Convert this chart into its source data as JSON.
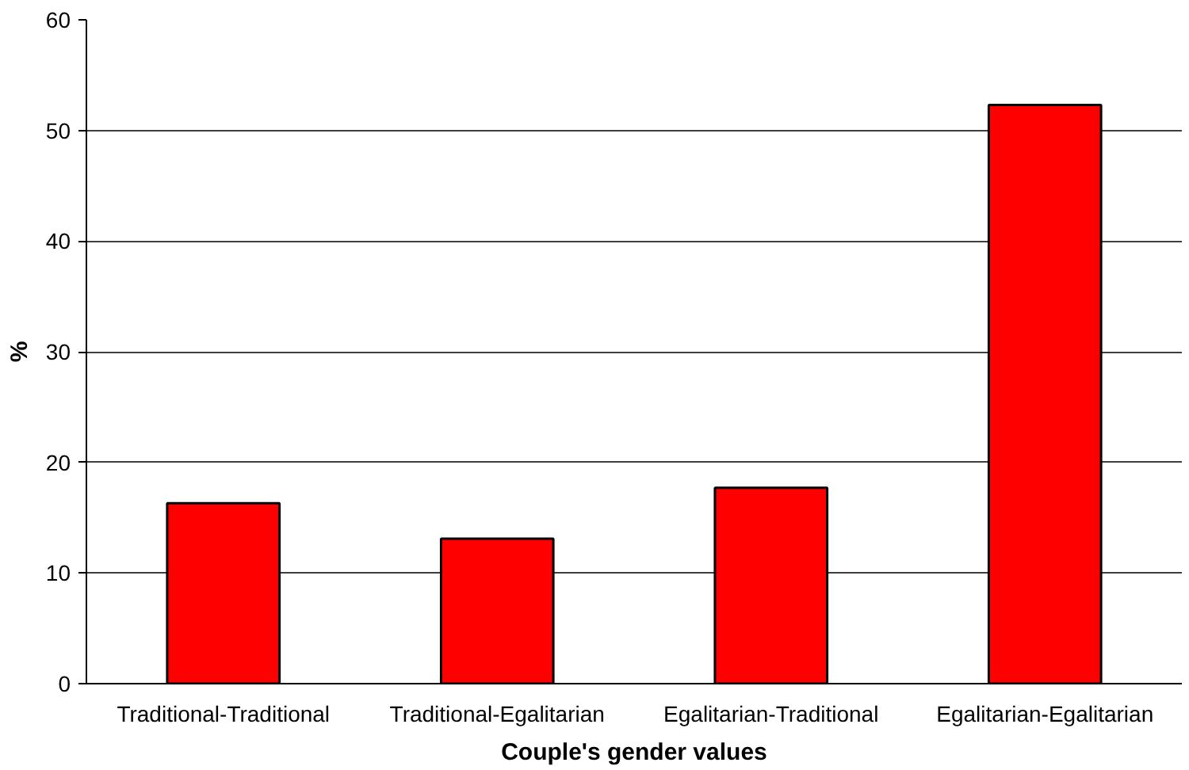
{
  "chart_data": {
    "type": "bar",
    "categories": [
      "Traditional-Traditional",
      "Traditional-Egalitarian",
      "Egalitarian-Traditional",
      "Egalitarian-Egalitarian"
    ],
    "values": [
      16.3,
      13.1,
      17.7,
      52.3
    ],
    "color": "#ff0000",
    "xlabel": "Couple's gender values",
    "ylabel": "%",
    "ylim": [
      0,
      60
    ],
    "yticks": [
      0,
      10,
      20,
      30,
      40,
      50,
      60
    ],
    "grid": "y"
  }
}
